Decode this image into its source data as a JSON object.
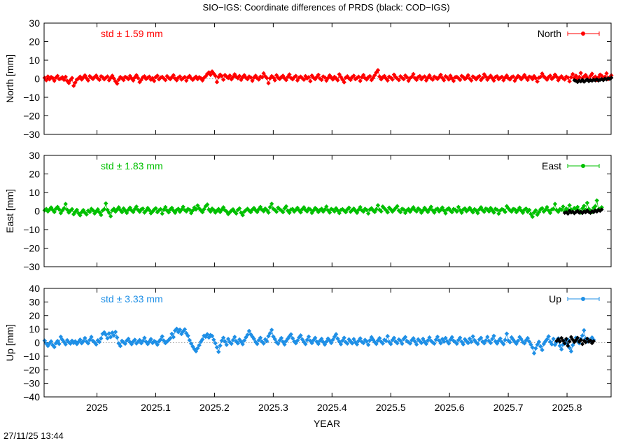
{
  "title": "SIO−IGS: Coordinate differences of PRDS (black: COD−IGS)",
  "timestamp": "27/11/25 13:44",
  "chart_data": {
    "type": "scatter",
    "xlabel": "YEAR",
    "xlim": [
      2024.91,
      2025.875
    ],
    "x_ticks": [
      2025,
      2025.1,
      2025.2,
      2025.3,
      2025.4,
      2025.5,
      2025.6,
      2025.7,
      2025.8
    ],
    "x_tick_labels": [
      "2025",
      "2025.1",
      "2025.2",
      "2025.3",
      "2025.4",
      "2025.5",
      "2025.6",
      "2025.7",
      "2025.8"
    ],
    "grid": false,
    "legend_position": "top-right",
    "zero_line": "dotted",
    "panels": [
      {
        "name": "North",
        "ylabel": "North [mm]",
        "ylim": [
          -30,
          30
        ],
        "y_ticks": [
          30,
          20,
          10,
          0,
          -10,
          -20,
          -30
        ],
        "y_tick_labels": [
          "30",
          "20",
          "10",
          "0",
          "−10",
          "−20",
          "−30"
        ],
        "std_label": "std ± 1.59 mm",
        "legend_label": "North",
        "color": "#ff0000",
        "x_start": 2024.911,
        "x_step": 0.00274,
        "values": [
          0.5,
          -0.8,
          1.2,
          -0.3,
          0.9,
          0.4,
          -1.1,
          0.6,
          1.5,
          -0.2,
          0.1,
          0.8,
          -0.6,
          1.0,
          -1.2,
          -2.3,
          -0.7,
          0.4,
          -3.8,
          -2.1,
          -0.5,
          0.2,
          1.1,
          -0.4,
          0.7,
          1.8,
          0.3,
          -0.9,
          1.4,
          0.6,
          -0.1,
          0.9,
          1.7,
          0.2,
          -0.6,
          1.3,
          0.8,
          -0.3,
          0.5,
          1.2,
          -0.8,
          0.4,
          1.6,
          0.1,
          -1.4,
          -2.6,
          -0.5,
          0.9,
          0.3,
          -0.7,
          1.0,
          0.6,
          -0.2,
          1.5,
          0.2,
          -0.9,
          0.7,
          1.9,
          0.4,
          -1.8,
          -0.6,
          0.8,
          1.3,
          -0.1,
          0.5,
          1.1,
          -0.5,
          0.3,
          -1.2,
          0.9,
          1.6,
          -0.3,
          0.6,
          1.0,
          0.2,
          -0.7,
          1.4,
          0.5,
          -0.2,
          0.8,
          1.9,
          0.1,
          -0.8,
          0.6,
          1.2,
          -0.4,
          0.3,
          0.9,
          -1.0,
          0.7,
          1.5,
          0.2,
          -0.6,
          0.4,
          1.1,
          -0.2,
          0.8,
          0.3,
          -0.9,
          0.5,
          1.3,
          2.6,
          3.4,
          2.1,
          3.9,
          2.8,
          1.6,
          -1.8,
          0.9,
          2.2,
          1.4,
          -0.5,
          2.0,
          1.1,
          0.4,
          1.7,
          -0.3,
          0.9,
          2.4,
          1.0,
          0.3,
          1.5,
          -0.6,
          0.8,
          1.9,
          0.5,
          -0.2,
          1.2,
          0.7,
          -1.1,
          0.6,
          1.6,
          0.3,
          -0.4,
          1.1,
          0.8,
          2.9,
          1.3,
          0.4,
          -2.4,
          0.2,
          1.4,
          0.7,
          -0.8,
          1.9,
          0.5,
          -0.1,
          0.9,
          1.6,
          0.2,
          -0.7,
          1.0,
          2.3,
          0.4,
          -0.3,
          0.8,
          1.5,
          -0.9,
          0.6,
          1.1,
          0.3,
          -0.5,
          1.4,
          0.2,
          0.8,
          -1.3,
          1.7,
          0.5,
          -0.2,
          0.9,
          2.1,
          0.1,
          -0.6,
          1.2,
          0.7,
          -1.0,
          0.4,
          1.8,
          0.6,
          -0.4,
          1.0,
          0.3,
          -0.8,
          2.4,
          0.9,
          -0.5,
          -1.9,
          0.6,
          1.3,
          0.2,
          -0.6,
          0.9,
          1.6,
          -0.2,
          0.4,
          1.1,
          -1.2,
          0.7,
          2.0,
          0.3,
          -0.4,
          0.8,
          1.4,
          -0.7,
          0.5,
          1.9,
          3.4,
          4.6,
          1.2,
          -0.3,
          0.8,
          1.5,
          0.2,
          -0.9,
          1.1,
          0.6,
          -0.4,
          2.2,
          0.9,
          0.1,
          -0.7,
          1.3,
          0.5,
          -0.2,
          1.7,
          0.8,
          -1.1,
          0.4,
          1.0,
          2.5,
          0.3,
          -0.6,
          0.9,
          1.4,
          -0.3,
          0.7,
          1.2,
          -0.9,
          0.5,
          1.8,
          0.2,
          -0.5,
          1.1,
          0.6,
          -0.1,
          0.9,
          2.1,
          0.4,
          -0.8,
          1.3,
          0.7,
          -0.4,
          1.6,
          0.2,
          -1.2,
          0.8,
          1.0,
          0.3,
          -0.6,
          1.5,
          0.9,
          -0.2,
          0.5,
          1.9,
          0.1,
          -0.9,
          1.2,
          0.6,
          -0.3,
          0.8,
          1.4,
          -0.7,
          0.4,
          2.4,
          1.1,
          -0.5,
          0.7,
          1.6,
          0.3,
          -1.0,
          0.9,
          1.3,
          -0.2,
          0.5,
          1.0,
          -0.8,
          0.6,
          1.7,
          0.2,
          -0.4,
          0.8,
          1.2,
          -1.1,
          0.4,
          1.5,
          0.9,
          -0.3,
          0.7,
          2.0,
          0.5,
          -0.6,
          1.1,
          0.8,
          -0.2,
          1.4,
          0.3,
          -1.5,
          0.6,
          1.0,
          2.8,
          1.3,
          0.4,
          -0.5,
          0.9,
          1.6,
          -0.1,
          0.7,
          2.2,
          1.0,
          -0.8,
          0.5,
          1.3,
          0.2,
          -0.4,
          1.1,
          0.6,
          -1.4,
          0.8,
          2.5,
          0.4,
          1.6,
          -0.3,
          0.9,
          3.1,
          0.2,
          1.2,
          2.0,
          0.6,
          -0.6,
          1.5,
          2.7,
          0.4,
          1.1,
          -0.7,
          0.8,
          2.2,
          1.6,
          0.3,
          1.0,
          2.9,
          -0.2,
          0.7,
          1.8
        ],
        "reference_values": [
          -0.8,
          -1.2,
          -1.8,
          -0.9,
          -1.4,
          -0.6,
          -1.6,
          -1.0,
          -0.4,
          -1.3,
          -0.7,
          -1.1,
          -0.5,
          -0.9,
          -0.3,
          -1.0,
          -0.6,
          -0.2,
          -0.8,
          0.1,
          -0.4,
          0.3,
          -0.1,
          0.5
        ]
      },
      {
        "name": "East",
        "ylabel": "East [mm]",
        "ylim": [
          -30,
          30
        ],
        "y_ticks": [
          30,
          20,
          10,
          0,
          -10,
          -20,
          -30
        ],
        "y_tick_labels": [
          "30",
          "20",
          "10",
          "0",
          "−10",
          "−20",
          "−30"
        ],
        "std_label": "std ± 1.83 mm",
        "legend_label": "East",
        "color": "#00c000",
        "x_start": 2024.911,
        "x_step": 0.00274,
        "values": [
          0.4,
          1.1,
          -0.2,
          0.8,
          1.9,
          0.6,
          -0.5,
          1.3,
          2.2,
          0.9,
          -1.1,
          0.3,
          1.5,
          3.8,
          0.7,
          -0.8,
          0.2,
          1.0,
          -1.7,
          -0.4,
          0.6,
          -1.2,
          -2.3,
          -0.6,
          0.5,
          -0.9,
          -1.8,
          0.2,
          -0.5,
          1.2,
          0.4,
          -1.3,
          -0.2,
          0.9,
          -0.7,
          -2.1,
          0.3,
          1.0,
          4.1,
          0.6,
          -0.9,
          -2.8,
          0.4,
          1.2,
          -0.3,
          0.8,
          2.0,
          0.5,
          -0.6,
          1.4,
          0.2,
          -1.0,
          0.7,
          1.8,
          0.3,
          -0.5,
          1.1,
          2.4,
          0.6,
          -0.4,
          0.9,
          1.3,
          -0.8,
          0.2,
          1.6,
          0.5,
          -1.2,
          -0.3,
          0.8,
          1.5,
          -0.6,
          0.4,
          1.0,
          -1.4,
          0.7,
          2.1,
          0.3,
          -0.7,
          0.9,
          1.7,
          0.2,
          -0.9,
          0.6,
          1.2,
          -0.4,
          0.8,
          2.3,
          0.5,
          -0.2,
          1.1,
          0.7,
          -1.1,
          0.3,
          1.9,
          0.9,
          3.0,
          1.4,
          0.4,
          -0.6,
          1.0,
          2.6,
          3.5,
          0.8,
          -0.3,
          1.3,
          0.6,
          -0.8,
          0.2,
          1.1,
          -0.5,
          0.7,
          2.0,
          0.4,
          -0.2,
          -1.6,
          -0.7,
          0.3,
          0.9,
          -0.4,
          -1.3,
          0.6,
          1.4,
          -0.9,
          -2.2,
          -0.3,
          0.5,
          1.2,
          0.2,
          -0.6,
          0.8,
          1.6,
          0.4,
          -0.5,
          1.0,
          2.2,
          0.7,
          -0.1,
          1.3,
          0.5,
          -0.8,
          2.1,
          3.9,
          1.2,
          0.6,
          -0.4,
          1.8,
          0.9,
          0.3,
          -0.6,
          1.4,
          2.5,
          0.2,
          -0.9,
          0.8,
          1.1,
          -0.3,
          0.6,
          1.7,
          0.4,
          -0.7,
          1.0,
          2.0,
          0.5,
          -0.2,
          1.3,
          0.8,
          -1.0,
          0.3,
          1.6,
          0.9,
          -0.5,
          0.6,
          1.2,
          -0.3,
          0.8,
          2.4,
          0.4,
          -0.8,
          1.1,
          0.7,
          -0.2,
          1.5,
          0.3,
          -1.1,
          0.6,
          1.0,
          0.2,
          -0.6,
          0.9,
          1.8,
          -0.4,
          0.5,
          1.3,
          0.1,
          -0.9,
          0.7,
          2.1,
          0.4,
          -0.3,
          1.2,
          0.6,
          -1.3,
          0.8,
          1.5,
          0.3,
          -0.5,
          1.0,
          3.1,
          0.7,
          -0.2,
          2.4,
          1.4,
          0.5,
          -0.7,
          1.8,
          0.9,
          -0.3,
          0.6,
          1.6,
          2.6,
          0.3,
          -0.6,
          1.2,
          0.8,
          -1.0,
          0.4,
          1.1,
          -0.4,
          0.9,
          2.0,
          0.5,
          -0.2,
          1.4,
          0.7,
          -0.9,
          0.3,
          1.7,
          0.6,
          -0.5,
          1.0,
          2.3,
          0.4,
          -0.8,
          0.8,
          1.3,
          -0.2,
          0.6,
          1.9,
          0.3,
          -1.2,
          0.9,
          1.5,
          0.2,
          -0.6,
          1.1,
          0.7,
          -0.3,
          2.2,
          0.5,
          -0.9,
          0.8,
          1.4,
          -0.1,
          0.6,
          1.7,
          0.4,
          -0.7,
          1.0,
          0.3,
          -1.1,
          0.9,
          2.0,
          0.5,
          -0.4,
          1.3,
          0.8,
          -0.2,
          1.6,
          0.4,
          -0.8,
          1.2,
          0.7,
          -1.4,
          0.3,
          1.0,
          0.6,
          -0.5,
          2.6,
          1.4,
          0.4,
          -0.3,
          1.1,
          0.9,
          -0.6,
          0.5,
          1.8,
          0.2,
          -0.9,
          0.7,
          1.3,
          -0.4,
          0.6,
          -1.6,
          -3.1,
          -0.8,
          0.4,
          -2.0,
          -0.6,
          0.9,
          1.5,
          -0.3,
          0.6,
          2.1,
          0.3,
          -1.0,
          0.8,
          1.2,
          3.8,
          0.5,
          -0.4,
          1.0,
          0.7,
          2.4,
          -0.2,
          1.3,
          0.4,
          3.1,
          0.8,
          -0.5,
          1.6,
          0.9,
          2.2,
          0.3,
          -0.8,
          1.4,
          2.8,
          0.6,
          4.4,
          1.1,
          0.2,
          -0.6,
          1.7,
          2.6,
          5.7,
          0.9,
          1.3,
          2.0
        ],
        "reference_values": [
          -1.0,
          -0.6,
          -1.4,
          0.2,
          -0.8,
          -0.3,
          -1.2,
          -0.5,
          0.1,
          -0.9,
          -0.4,
          -1.1,
          -0.2,
          -0.7,
          0.3,
          -0.5,
          -1.0,
          -0.1,
          -0.6,
          0.4,
          -0.3,
          0.6,
          0.1,
          0.8
        ]
      },
      {
        "name": "Up",
        "ylabel": "Up [mm]",
        "ylim": [
          -40,
          40
        ],
        "y_ticks": [
          40,
          30,
          20,
          10,
          0,
          -10,
          -20,
          -30,
          -40
        ],
        "y_tick_labels": [
          "40",
          "30",
          "20",
          "10",
          "0",
          "−10",
          "−20",
          "−30",
          "−40"
        ],
        "std_label": "std ± 3.33 mm",
        "legend_label": "Up",
        "color": "#1e8fe6",
        "x_start": 2024.911,
        "x_step": 0.00274,
        "values": [
          1.5,
          -0.8,
          -2.4,
          -0.6,
          0.9,
          -1.8,
          -3.2,
          -0.4,
          1.2,
          -0.9,
          4.3,
          2.1,
          0.5,
          -1.2,
          1.8,
          0.3,
          -0.7,
          1.4,
          -0.2,
          0.9,
          -1.0,
          0.6,
          2.2,
          -0.4,
          1.1,
          3.4,
          0.8,
          -0.5,
          2.0,
          4.2,
          1.3,
          0.2,
          -1.3,
          1.7,
          0.5,
          3.1,
          6.5,
          7.6,
          5.9,
          3.2,
          6.8,
          4.1,
          7.4,
          5.2,
          7.9,
          3.8,
          -0.6,
          -2.5,
          1.3,
          0.2,
          -0.8,
          1.5,
          2.8,
          0.4,
          -1.1,
          0.9,
          2.1,
          -0.6,
          0.7,
          1.9,
          -0.4,
          1.2,
          3.5,
          0.6,
          -1.0,
          0.8,
          2.6,
          -0.2,
          1.1,
          0.4,
          -1.5,
          0.9,
          2.3,
          4.6,
          1.5,
          -0.3,
          0.8,
          1.9,
          3.2,
          6.5,
          4.1,
          8.9,
          10.2,
          7.8,
          9.6,
          6.4,
          8.3,
          9.8,
          6.9,
          5.1,
          1.8,
          -0.7,
          -2.9,
          -4.8,
          -6.3,
          -4.1,
          -1.9,
          0.6,
          2.4,
          5.1,
          4.3,
          6.2,
          3.8,
          5.6,
          4.9,
          2.1,
          -0.4,
          -3.5,
          -6.8,
          -2.2,
          1.4,
          3.6,
          0.9,
          -1.6,
          2.7,
          0.4,
          -0.8,
          1.9,
          4.2,
          1.0,
          -0.5,
          2.3,
          0.7,
          -1.1,
          1.6,
          3.9,
          5.8,
          8.6,
          6.1,
          4.4,
          2.8,
          0.5,
          -0.9,
          1.8,
          3.6,
          0.8,
          -0.6,
          2.4,
          1.1,
          4.8,
          6.9,
          9.4,
          4.5,
          2.6,
          0.3,
          -0.8,
          1.7,
          3.4,
          0.6,
          -1.3,
          1.2,
          2.9,
          4.6,
          6.1,
          3.2,
          0.9,
          -0.4,
          1.5,
          3.8,
          5.3,
          2.4,
          0.6,
          -1.0,
          2.0,
          4.4,
          1.3,
          -0.3,
          1.9,
          3.5,
          0.7,
          -0.9,
          1.4,
          2.8,
          0.5,
          -1.4,
          0.8,
          3.0,
          1.6,
          -0.2,
          2.1,
          4.3,
          6.2,
          2.9,
          0.8,
          -1.1,
          1.5,
          3.6,
          0.4,
          -0.7,
          2.4,
          1.0,
          -0.5,
          2.6,
          0.3,
          -1.2,
          1.3,
          3.1,
          0.6,
          -0.3,
          2.0,
          0.9,
          -1.6,
          1.7,
          4.0,
          2.2,
          0.4,
          -0.9,
          1.6,
          3.3,
          0.7,
          -0.6,
          2.1,
          1.2,
          4.8,
          0.5,
          -1.0,
          1.9,
          3.5,
          0.8,
          -0.4,
          2.3,
          1.4,
          -0.8,
          2.7,
          4.1,
          1.2,
          0.3,
          -0.6,
          1.8,
          3.2,
          0.9,
          -1.3,
          2.4,
          1.1,
          -0.2,
          2.8,
          0.6,
          -0.9,
          1.6,
          3.8,
          1.3,
          0.2,
          -0.7,
          2.1,
          4.3,
          1.5,
          -0.4,
          2.6,
          0.8,
          3.4,
          1.0,
          -0.6,
          2.2,
          4.0,
          1.4,
          0.5,
          -0.8,
          1.9,
          3.6,
          0.7,
          -1.2,
          2.5,
          1.1,
          -0.3,
          2.9,
          0.6,
          4.6,
          1.8,
          0.2,
          -0.9,
          2.3,
          3.5,
          0.8,
          -0.5,
          1.6,
          4.2,
          1.2,
          -0.2,
          2.7,
          5.0,
          0.9,
          -0.6,
          1.4,
          3.0,
          0.4,
          -1.1,
          2.0,
          6.6,
          1.5,
          0.3,
          3.9,
          2.2,
          0.6,
          -0.8,
          1.3,
          4.1,
          2.6,
          0.4,
          -0.5,
          1.7,
          3.3,
          0.8,
          -1.4,
          -3.6,
          -7.8,
          -4.2,
          -1.5,
          0.6,
          -2.8,
          -5.4,
          -1.0,
          0.9,
          2.4,
          4.6,
          0.7,
          -1.2,
          2.8,
          -1.6,
          0.4,
          3.1,
          -2.3,
          -4.9,
          -1.3,
          1.6,
          -0.6,
          2.3,
          -3.8,
          -6.4,
          -1.8,
          0.9,
          3.6,
          1.2,
          -0.4,
          2.7,
          5.2,
          9.1,
          3.0,
          0.8,
          2.4,
          1.5,
          3.8,
          2.0
        ],
        "reference_values": [
          1.2,
          2.6,
          0.8,
          3.4,
          1.5,
          -0.6,
          2.8,
          -2.4,
          0.9,
          4.1,
          2.2,
          0.4,
          1.8,
          3.6,
          0.6,
          2.1,
          -1.1,
          1.4,
          0.3,
          2.9,
          0.7,
          1.6,
          -0.4,
          1.1
        ]
      }
    ]
  }
}
